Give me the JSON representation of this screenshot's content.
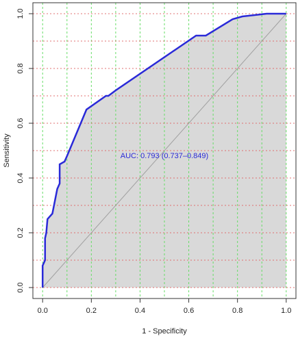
{
  "chart_data": {
    "type": "line",
    "xlabel": "1 - Specificity",
    "ylabel": "Sensitivity",
    "annotation": {
      "text": "AUC: 0.793 (0.737–0.849)",
      "x": 0.5,
      "y": 0.48
    },
    "x": [
      0,
      0,
      0.01,
      0.01,
      0.015,
      0.02,
      0.04,
      0.06,
      0.07,
      0.07,
      0.09,
      0.1,
      0.18,
      0.26,
      0.27,
      0.3,
      0.63,
      0.67,
      0.78,
      0.82,
      0.92,
      1.0
    ],
    "values": [
      0,
      0.08,
      0.1,
      0.18,
      0.2,
      0.25,
      0.27,
      0.36,
      0.38,
      0.45,
      0.46,
      0.48,
      0.65,
      0.7,
      0.7,
      0.72,
      0.92,
      0.92,
      0.98,
      0.99,
      1.0,
      1.0
    ],
    "color": "#2a2ad8",
    "fill_color": "#d9d9d9",
    "diagonal_color": "#a0a0a0",
    "xlim": [
      -0.04,
      1.04
    ],
    "ylim": [
      -0.04,
      1.04
    ],
    "xticks": [
      {
        "value": 0,
        "label": "0.0"
      },
      0.2,
      0.4,
      0.6,
      0.8,
      {
        "value": 1,
        "label": "1.0"
      }
    ],
    "yticks": [
      {
        "value": 0,
        "label": "0.0"
      },
      0.2,
      0.4,
      0.6,
      0.8,
      {
        "value": 1,
        "label": "1.0"
      }
    ],
    "xgrid": [
      0,
      0.1,
      0.2,
      0.3,
      0.4,
      0.5,
      0.6,
      0.7,
      0.8,
      0.9,
      1.0
    ],
    "xgrid_color": "#66dd66",
    "ygrid": [
      0,
      0.1,
      0.2,
      0.3,
      0.4,
      0.5,
      0.6,
      0.7,
      0.8,
      0.9,
      1.0
    ],
    "ygrid_color": "#e07070"
  }
}
